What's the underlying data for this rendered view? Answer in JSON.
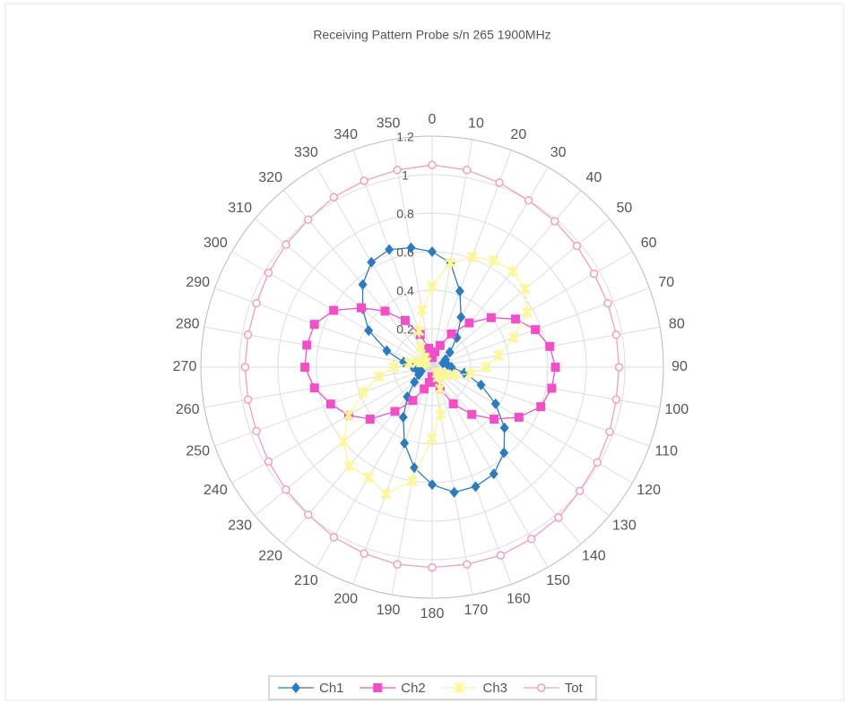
{
  "chart_data": {
    "type": "radar",
    "title": "Receiving Pattern Probe s/n 265 1900MHz",
    "categories": [
      0,
      10,
      20,
      30,
      40,
      50,
      60,
      70,
      80,
      90,
      100,
      110,
      120,
      130,
      140,
      150,
      160,
      170,
      180,
      190,
      200,
      210,
      220,
      230,
      240,
      250,
      260,
      270,
      280,
      290,
      300,
      310,
      320,
      330,
      340,
      350
    ],
    "ylim": [
      0,
      1.2
    ],
    "yticks": [
      0,
      0.2,
      0.4,
      0.6,
      0.8,
      1,
      1.2
    ],
    "grid": true,
    "legend": "bottom",
    "series": [
      {
        "name": "Ch1",
        "color": "#2b7bbf",
        "marker": "diamond",
        "values": [
          0.6,
          0.55,
          0.42,
          0.3,
          0.2,
          0.12,
          0.08,
          0.06,
          0.08,
          0.1,
          0.17,
          0.27,
          0.38,
          0.49,
          0.58,
          0.64,
          0.66,
          0.66,
          0.61,
          0.53,
          0.42,
          0.3,
          0.2,
          0.12,
          0.08,
          0.06,
          0.08,
          0.1,
          0.15,
          0.25,
          0.38,
          0.47,
          0.56,
          0.63,
          0.65,
          0.63
        ]
      },
      {
        "name": "Ch2",
        "color": "#f04fc8",
        "marker": "square",
        "values": [
          0.05,
          0.08,
          0.12,
          0.2,
          0.3,
          0.4,
          0.5,
          0.57,
          0.62,
          0.64,
          0.63,
          0.6,
          0.52,
          0.42,
          0.32,
          0.22,
          0.12,
          0.08,
          0.05,
          0.08,
          0.12,
          0.2,
          0.3,
          0.42,
          0.5,
          0.56,
          0.62,
          0.66,
          0.66,
          0.65,
          0.59,
          0.48,
          0.38,
          0.28,
          0.18,
          0.1
        ]
      },
      {
        "name": "Ch3",
        "color": "#fbf79a",
        "marker": "star",
        "values": [
          0.42,
          0.55,
          0.61,
          0.64,
          0.65,
          0.63,
          0.57,
          0.45,
          0.35,
          0.28,
          0.2,
          0.12,
          0.08,
          0.05,
          0.04,
          0.06,
          0.12,
          0.25,
          0.37,
          0.6,
          0.7,
          0.66,
          0.67,
          0.6,
          0.5,
          0.38,
          0.28,
          0.2,
          0.12,
          0.08,
          0.05,
          0.04,
          0.06,
          0.12,
          0.2,
          0.3
        ]
      },
      {
        "name": "Tot",
        "color": "#f2a0b4",
        "marker": "circle",
        "values": [
          1.05,
          1.04,
          1.02,
          1.0,
          0.99,
          0.98,
          0.97,
          0.97,
          0.97,
          0.97,
          0.97,
          0.98,
          0.99,
          1.0,
          1.02,
          1.03,
          1.04,
          1.04,
          1.04,
          1.04,
          1.03,
          1.02,
          1.0,
          0.99,
          0.98,
          0.97,
          0.97,
          0.97,
          0.97,
          0.97,
          0.98,
          0.99,
          1.0,
          1.02,
          1.03,
          1.04
        ]
      }
    ]
  }
}
